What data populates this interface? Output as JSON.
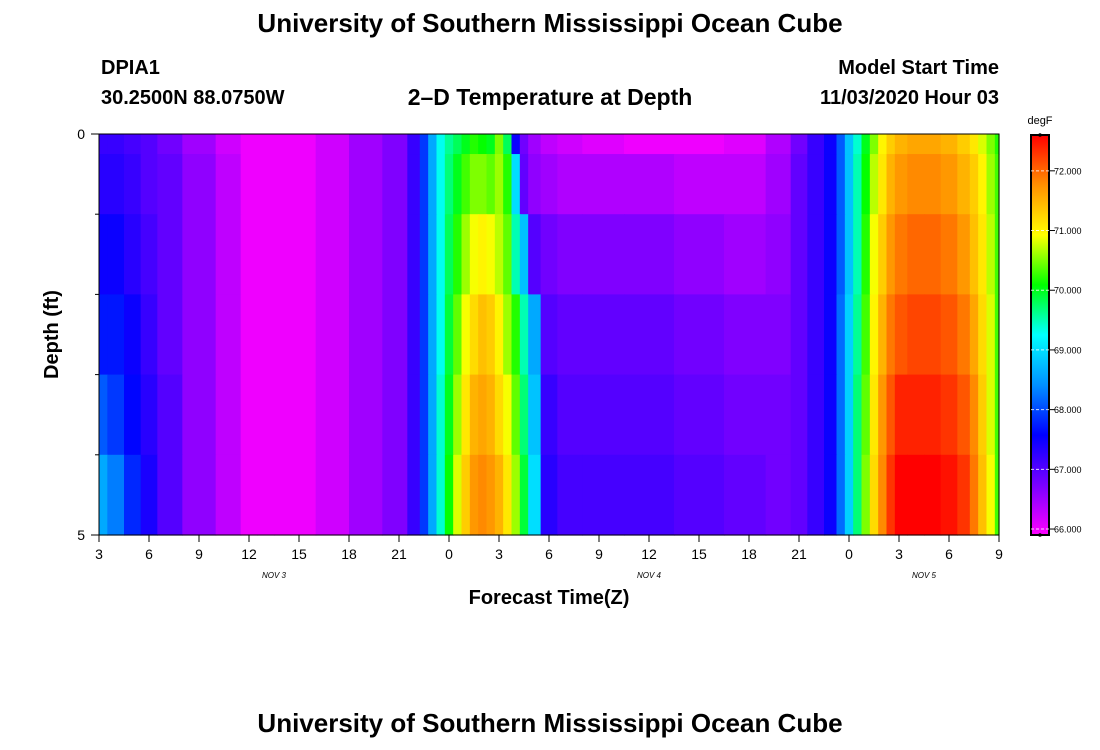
{
  "header": {
    "title": "University of Southern Mississippi Ocean Cube",
    "station": "DPIA1",
    "coords": "30.2500N 88.0750W",
    "subtitle": "2–D Temperature at Depth",
    "model_label": "Model Start Time",
    "model_time": "11/03/2020 Hour 03"
  },
  "footer": {
    "title": "University of Southern Mississippi Ocean Cube"
  },
  "chart_data": {
    "type": "heatmap",
    "title": "2–D Temperature at Depth",
    "xlabel": "Forecast Time(Z)",
    "ylabel": "Depth (ft)",
    "x_range": [
      3,
      57
    ],
    "y_range": [
      0,
      5
    ],
    "x_tick_positions": [
      3,
      6,
      9,
      12,
      15,
      18,
      21,
      24,
      27,
      30,
      33,
      36,
      39,
      42,
      45,
      48,
      51,
      54,
      57
    ],
    "x_tick_labels": [
      "3",
      "6",
      "9",
      "12",
      "15",
      "18",
      "21",
      "0",
      "3",
      "6",
      "9",
      "12",
      "15",
      "18",
      "21",
      "0",
      "3",
      "6",
      "9"
    ],
    "date_labels": [
      {
        "text": "NOV 3",
        "x": 13.5
      },
      {
        "text": "NOV 4",
        "x": 36
      },
      {
        "text": "NOV 5",
        "x": 52.5
      }
    ],
    "y_tick_labels": [
      "0",
      "5"
    ],
    "y_minor_ticks": [
      1,
      2,
      3,
      4
    ],
    "colorbar": {
      "unit": "degF",
      "min": 65.9,
      "max": 72.6,
      "ticks": [
        66,
        67,
        68,
        69,
        70,
        71,
        72
      ],
      "tick_labels": [
        "66.000",
        "67.000",
        "68.000",
        "69.000",
        "70.000",
        "71.000",
        "72.000"
      ],
      "colors": [
        "#ff00ff",
        "#7a00ff",
        "#0000ff",
        "#0090ff",
        "#00ffff",
        "#00ff00",
        "#ffff00",
        "#ff9000",
        "#ff0000"
      ]
    },
    "depth_levels_ft": [
      0,
      0.5,
      1.5,
      2.5,
      3.5,
      4.5
    ],
    "time_hours": [
      3,
      4,
      5,
      6,
      7,
      9,
      11,
      12,
      13,
      14,
      15,
      17,
      19,
      21,
      22,
      22.5,
      23,
      23.5,
      24,
      24.5,
      25,
      25.5,
      26,
      26.5,
      27,
      27.5,
      28,
      28.5,
      29,
      30,
      31,
      33,
      36,
      39,
      42,
      44,
      45,
      46,
      47,
      47.5,
      48,
      48.5,
      49,
      49.5,
      50,
      50.5,
      51,
      52,
      53,
      54,
      55,
      55.5,
      56,
      56.5,
      57
    ],
    "temperature_profiles": [
      [
        67.2,
        67.2,
        67.1,
        67.0,
        66.8,
        66.5,
        66.2,
        66.0,
        66.0,
        66.0,
        66.0,
        66.2,
        66.5,
        66.7,
        67.2,
        67.9,
        68.6,
        69.3,
        69.6,
        69.8,
        70.0,
        70.2,
        70.1,
        70.0,
        70.5,
        69.8,
        67.5,
        66.8,
        66.5,
        66.3,
        66.2,
        66.1,
        66.0,
        66.0,
        66.1,
        66.4,
        66.8,
        67.2,
        67.5,
        68.1,
        68.8,
        69.4,
        70.0,
        70.5,
        71.0,
        71.3,
        71.5,
        71.6,
        71.6,
        71.5,
        71.3,
        71.1,
        70.8,
        70.5,
        70.2
      ],
      [
        67.3,
        67.3,
        67.2,
        67.0,
        66.9,
        66.6,
        66.3,
        66.0,
        66.0,
        66.0,
        66.0,
        66.2,
        66.5,
        66.7,
        67.2,
        67.9,
        68.6,
        69.3,
        69.7,
        70.0,
        70.3,
        70.5,
        70.5,
        70.4,
        70.6,
        70.2,
        69.0,
        66.9,
        66.6,
        66.5,
        66.4,
        66.4,
        66.4,
        66.3,
        66.3,
        66.5,
        66.9,
        67.2,
        67.5,
        68.1,
        68.8,
        69.5,
        70.1,
        70.7,
        71.1,
        71.5,
        71.7,
        71.8,
        71.8,
        71.7,
        71.5,
        71.3,
        71.0,
        70.6,
        70.3
      ],
      [
        67.5,
        67.5,
        67.3,
        67.1,
        66.9,
        66.6,
        66.3,
        66.0,
        66.0,
        66.0,
        66.0,
        66.2,
        66.5,
        66.7,
        67.2,
        67.9,
        68.6,
        69.3,
        69.8,
        70.2,
        70.6,
        70.9,
        71.0,
        70.9,
        70.7,
        70.4,
        69.5,
        68.8,
        67.0,
        66.8,
        66.7,
        66.7,
        66.7,
        66.6,
        66.5,
        66.6,
        66.9,
        67.2,
        67.5,
        68.1,
        68.8,
        69.5,
        70.2,
        70.9,
        71.3,
        71.7,
        71.9,
        72.0,
        72.0,
        71.9,
        71.7,
        71.4,
        71.1,
        70.7,
        70.3
      ],
      [
        67.7,
        67.7,
        67.5,
        67.2,
        66.9,
        66.6,
        66.3,
        66.0,
        66.0,
        66.0,
        66.0,
        66.2,
        66.5,
        66.7,
        67.2,
        67.9,
        68.6,
        69.3,
        69.9,
        70.4,
        70.9,
        71.2,
        71.4,
        71.3,
        71.0,
        70.6,
        70.2,
        69.5,
        68.6,
        67.0,
        66.9,
        66.9,
        66.9,
        66.8,
        66.7,
        66.7,
        66.9,
        67.2,
        67.5,
        68.2,
        68.9,
        69.6,
        70.3,
        71.0,
        71.5,
        71.9,
        72.1,
        72.2,
        72.2,
        72.1,
        71.9,
        71.6,
        71.2,
        70.8,
        70.3
      ],
      [
        68.1,
        67.9,
        67.6,
        67.3,
        67.0,
        66.6,
        66.3,
        66.0,
        66.0,
        66.0,
        66.0,
        66.2,
        66.5,
        66.7,
        67.2,
        67.9,
        68.6,
        69.4,
        70.0,
        70.6,
        71.1,
        71.5,
        71.6,
        71.5,
        71.2,
        70.9,
        70.4,
        69.7,
        68.8,
        67.2,
        67.0,
        67.0,
        67.0,
        66.9,
        66.8,
        66.8,
        66.9,
        67.2,
        67.5,
        68.2,
        68.9,
        69.7,
        70.4,
        71.1,
        71.7,
        72.1,
        72.4,
        72.4,
        72.4,
        72.3,
        72.1,
        71.8,
        71.3,
        70.8,
        70.3
      ],
      [
        68.6,
        68.3,
        67.8,
        67.4,
        67.0,
        66.6,
        66.3,
        66.0,
        66.0,
        66.0,
        66.0,
        66.2,
        66.5,
        66.7,
        67.2,
        67.9,
        68.6,
        69.4,
        70.1,
        70.8,
        71.3,
        71.7,
        71.8,
        71.7,
        71.5,
        71.1,
        70.6,
        69.9,
        69.0,
        67.3,
        67.1,
        67.1,
        67.1,
        67.0,
        66.9,
        66.8,
        66.9,
        67.2,
        67.5,
        68.2,
        68.9,
        69.7,
        70.5,
        71.2,
        71.8,
        72.3,
        72.6,
        72.6,
        72.6,
        72.5,
        72.3,
        71.9,
        71.4,
        70.9,
        70.3
      ]
    ]
  }
}
